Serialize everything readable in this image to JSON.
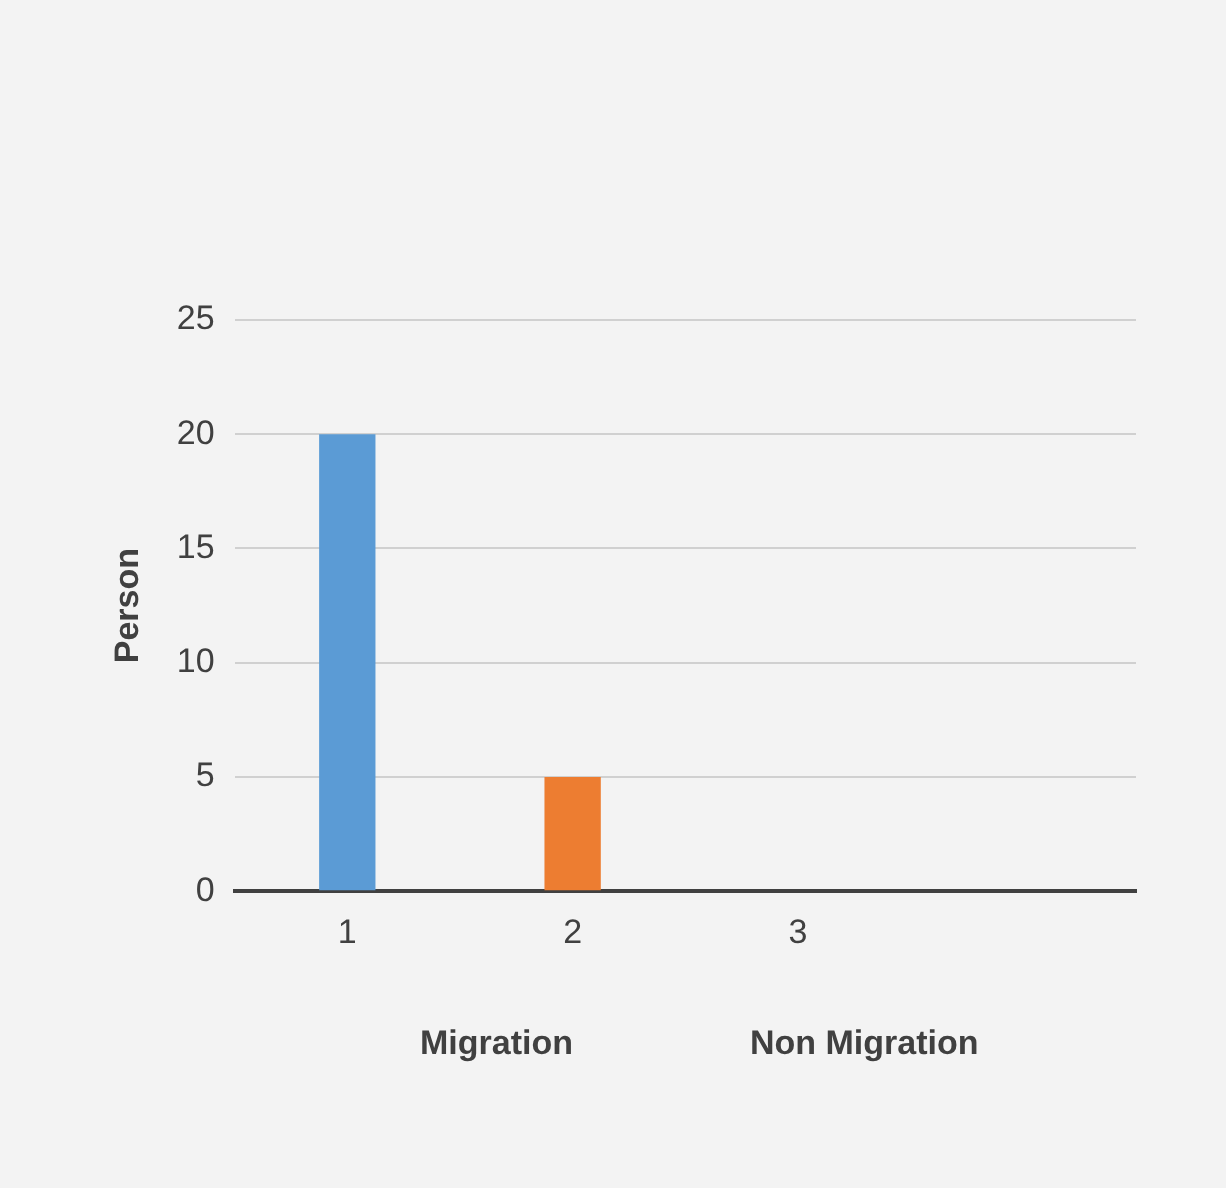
{
  "chart_data": {
    "type": "bar",
    "ylabel": "Person",
    "categories": [
      "1",
      "2",
      "3",
      null
    ],
    "values": [
      20,
      5,
      null,
      null
    ],
    "colors": [
      "#5b9bd5",
      "#ed7d31",
      "#a5a5a5",
      "#ffc000"
    ],
    "ylim": [
      0,
      25
    ],
    "yticks": [
      0,
      5,
      10,
      15,
      20,
      25
    ],
    "grid": "y",
    "legend": false,
    "annotations": [
      "Migration",
      "Non Migration"
    ]
  }
}
